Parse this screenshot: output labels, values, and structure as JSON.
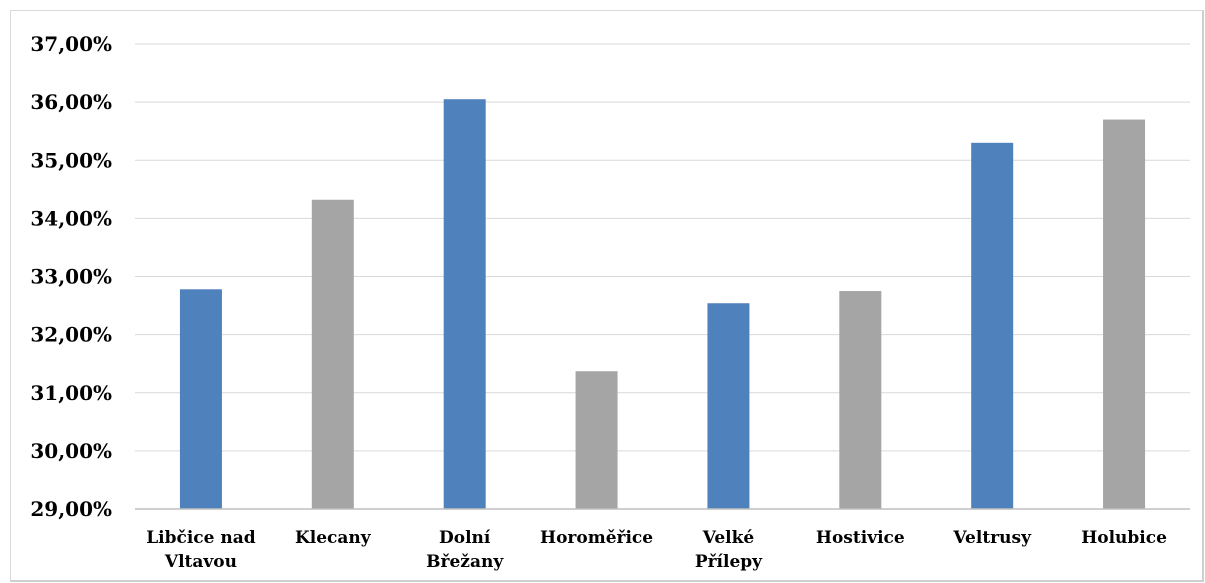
{
  "chart_data": {
    "type": "bar",
    "title": "",
    "xlabel": "",
    "ylabel": "",
    "ylim": [
      0.29,
      0.37
    ],
    "yticks": [
      "29,00%",
      "30,00%",
      "31,00%",
      "32,00%",
      "33,00%",
      "34,00%",
      "35,00%",
      "36,00%",
      "37,00%"
    ],
    "categories": [
      [
        "Libčice nad",
        "Vltavou"
      ],
      [
        "Klecany"
      ],
      [
        "Dolní",
        "Břežany"
      ],
      [
        "Horoměřice"
      ],
      [
        "Velké",
        "Přílepy"
      ],
      [
        "Hostivice"
      ],
      [
        "Veltrusy"
      ],
      [
        "Holubice"
      ]
    ],
    "values": [
      0.3278,
      0.3432,
      0.3605,
      0.3137,
      0.3254,
      0.3275,
      0.353,
      0.357
    ],
    "bar_colors": [
      "#4f81bd",
      "#a5a5a5",
      "#4f81bd",
      "#a5a5a5",
      "#4f81bd",
      "#a5a5a5",
      "#4f81bd",
      "#a5a5a5"
    ],
    "grid": true,
    "gridline_color": "#d9d9d9",
    "legend": "none"
  }
}
